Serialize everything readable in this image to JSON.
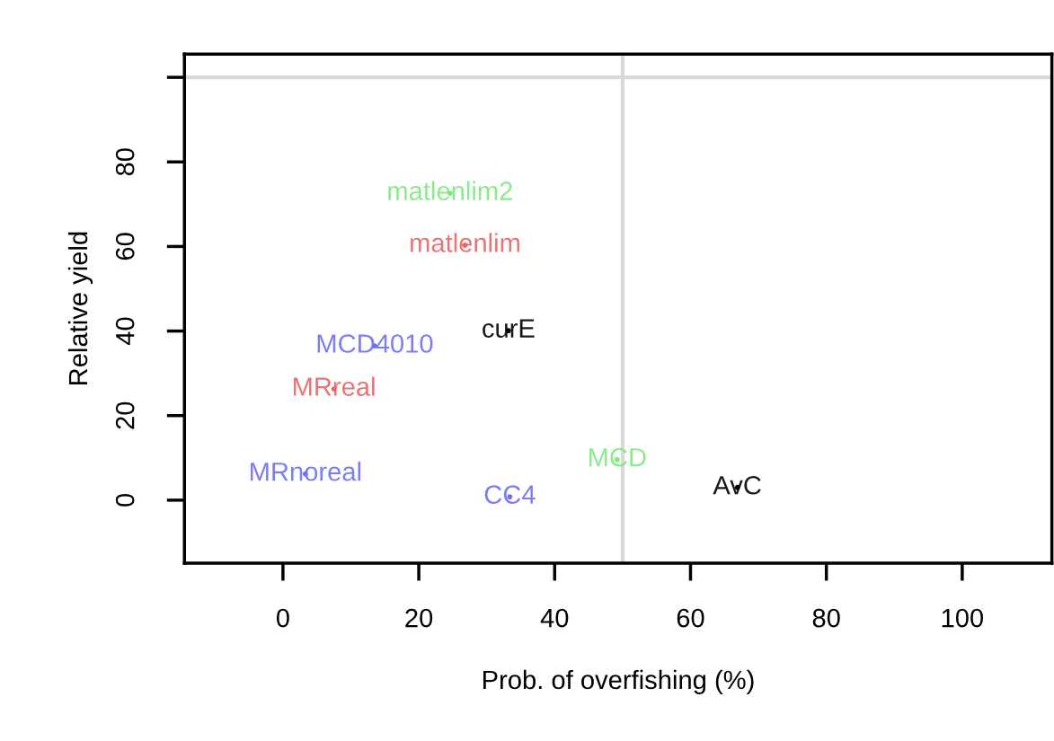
{
  "chart_data": {
    "type": "scatter",
    "xlabel": "Prob. of overfishing (%)",
    "ylabel": "Relative yield",
    "xlim": [
      -14.5,
      113.2
    ],
    "ylim": [
      -14.9,
      105.5
    ],
    "xticks": [
      0,
      20,
      40,
      60,
      80,
      100
    ],
    "yticks": [
      0,
      20,
      40,
      60,
      80,
      {
        "value": 100,
        "label": null
      }
    ],
    "marker": "circle",
    "grid": false,
    "legend": false,
    "ref_lines": [
      {
        "axis": "y",
        "value": 100,
        "color": "#d9d9d9"
      },
      {
        "axis": "x",
        "value": 50,
        "color": "#d9d9d9"
      }
    ],
    "series": [
      {
        "name": "matlenlim2",
        "color": "#80e880",
        "x": [
          24.6
        ],
        "values": [
          72.6
        ]
      },
      {
        "name": "matlenlim",
        "color": "#e86464",
        "x": [
          26.8
        ],
        "values": [
          60.3
        ]
      },
      {
        "name": "MCD4010",
        "color": "#7070f0",
        "x": [
          13.5
        ],
        "values": [
          36.5
        ]
      },
      {
        "name": "curE",
        "color": "#000000",
        "x": [
          33.2
        ],
        "values": [
          40.1
        ]
      },
      {
        "name": "MRreal",
        "color": "#e86464",
        "x": [
          7.5
        ],
        "values": [
          26.3
        ]
      },
      {
        "name": "MRnoreal",
        "color": "#7070f0",
        "x": [
          3.3
        ],
        "values": [
          6.2
        ]
      },
      {
        "name": "MCD",
        "color": "#80e880",
        "x": [
          49.2
        ],
        "values": [
          9.6
        ]
      },
      {
        "name": "AvC",
        "color": "#000000",
        "x": [
          66.9
        ],
        "values": [
          3.0
        ]
      },
      {
        "name": "CC4",
        "color": "#7070f0",
        "x": [
          33.4
        ],
        "values": [
          0.8
        ]
      }
    ]
  }
}
